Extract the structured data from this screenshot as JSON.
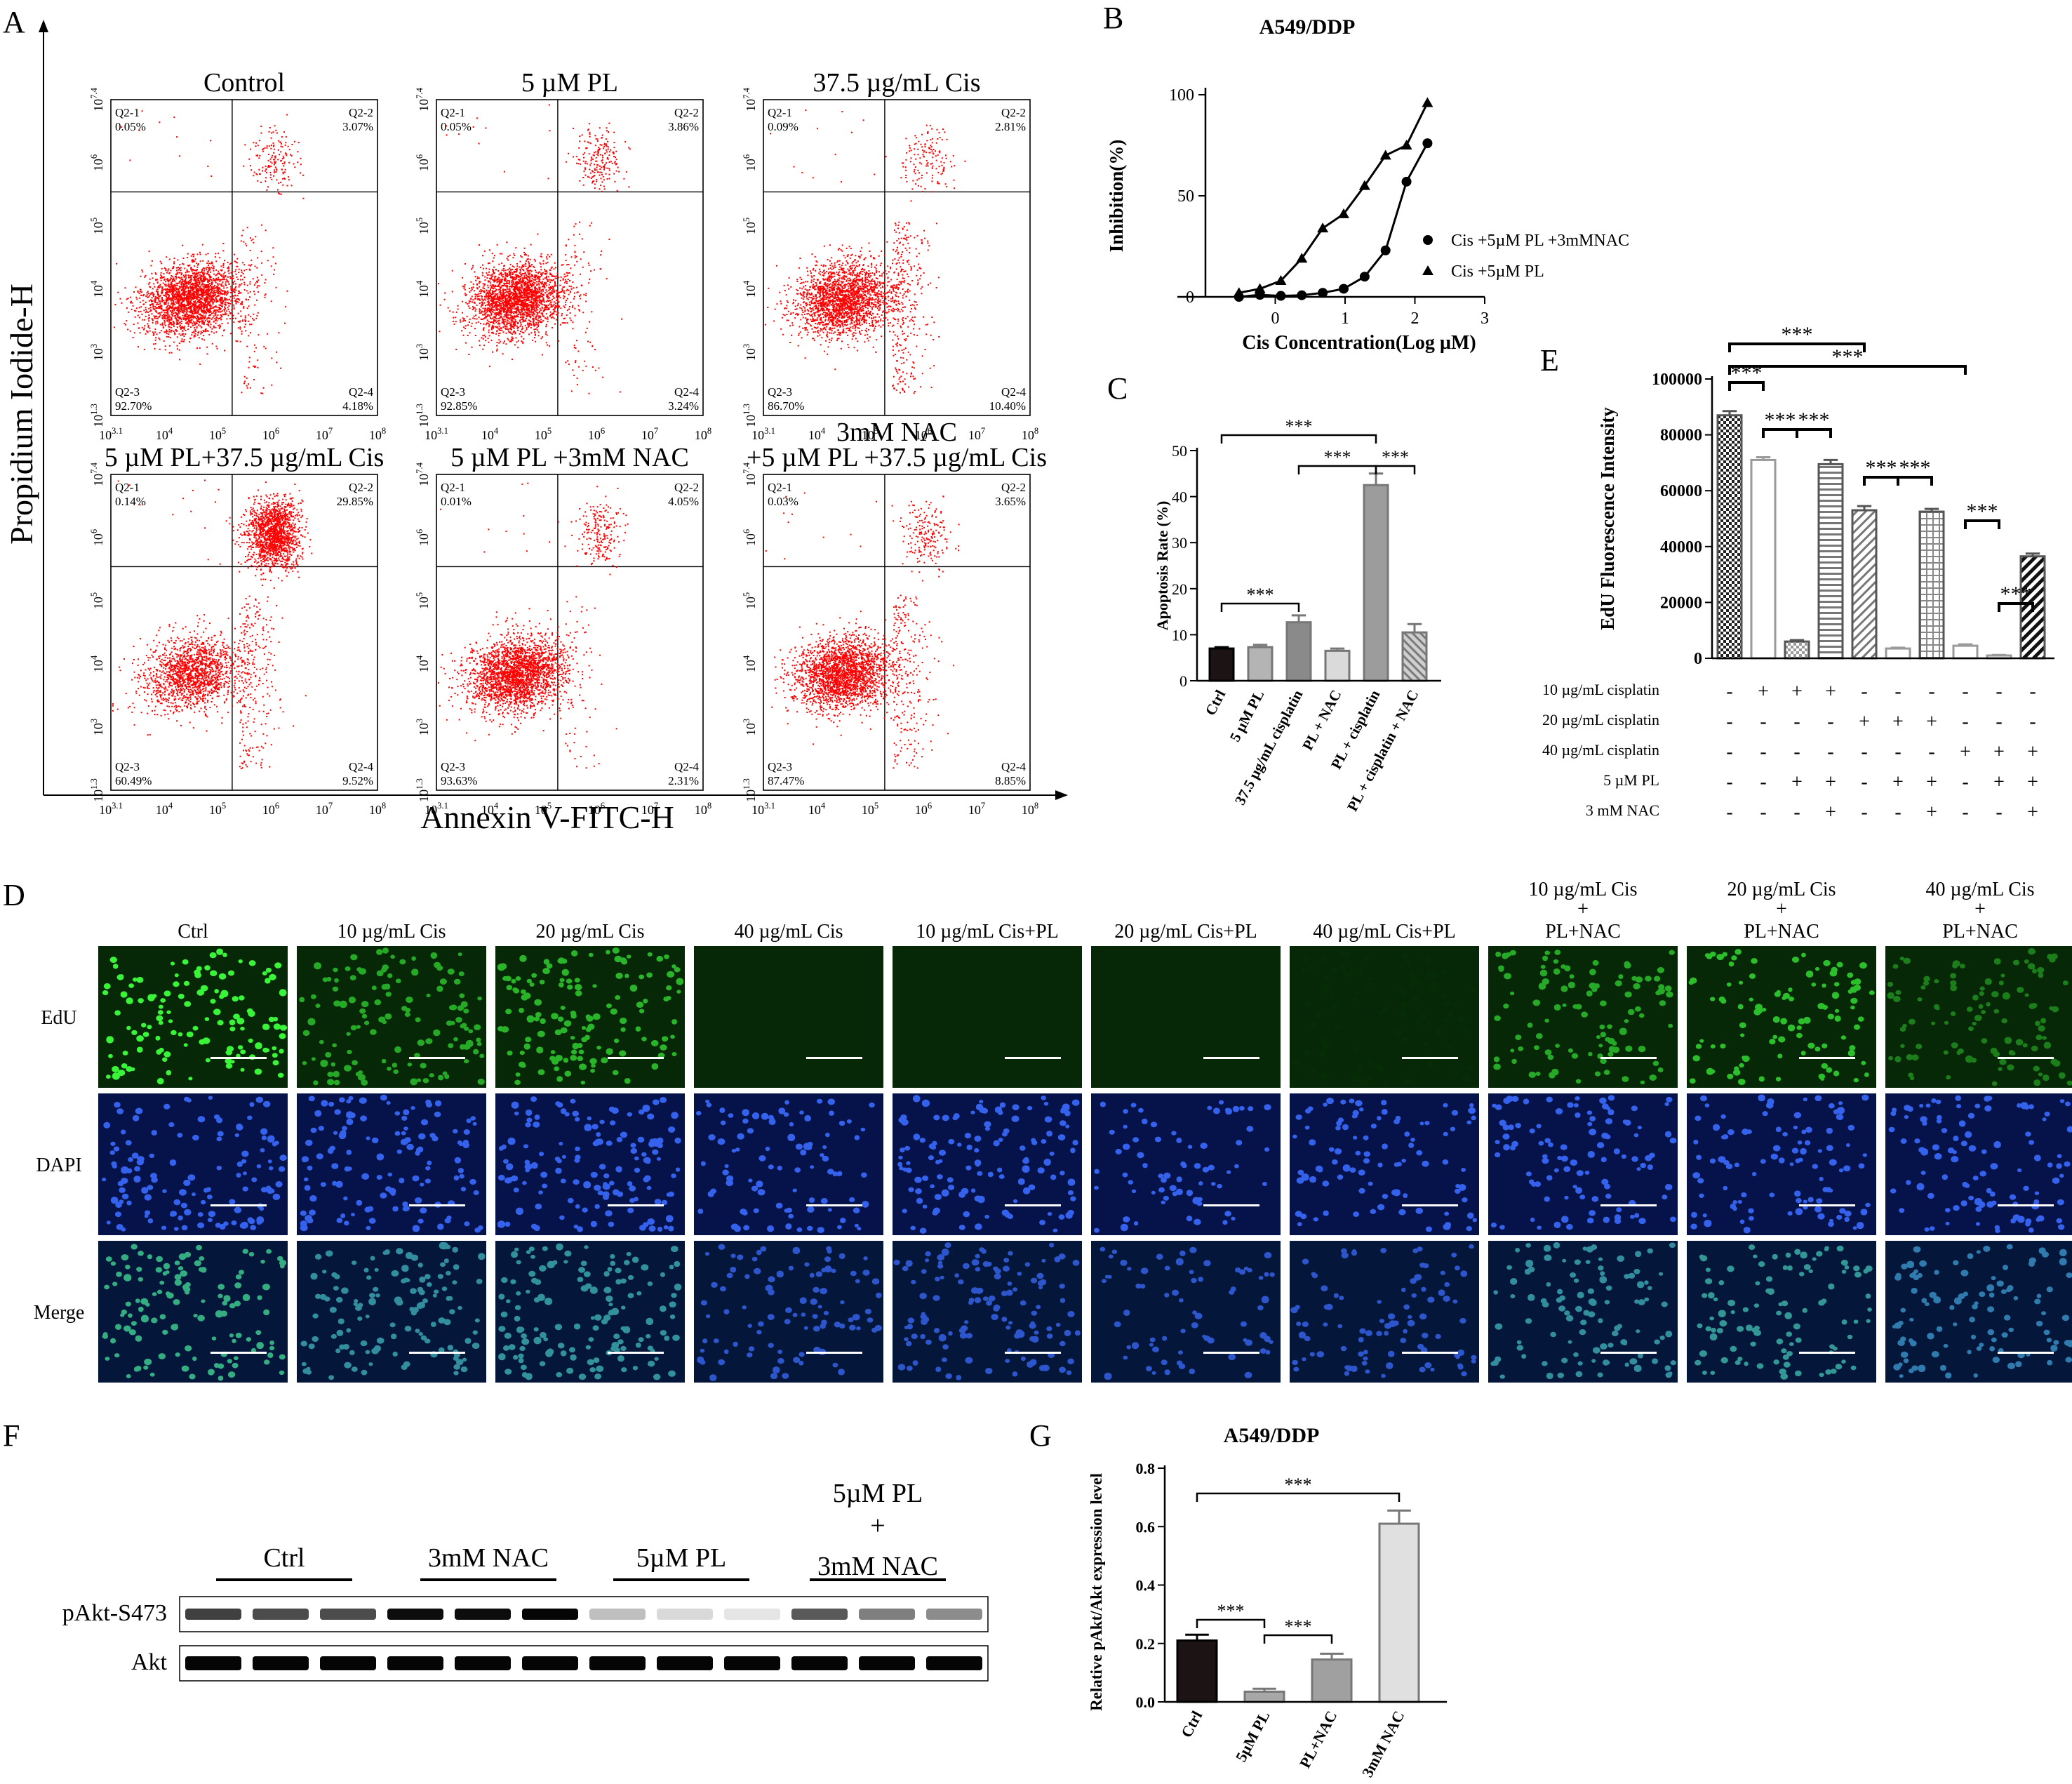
{
  "panels": {
    "A": {
      "letter": "A",
      "y_axis_label": "Propidium Iodide-H",
      "x_axis_label": "Annexin V-FITC-H",
      "x_ticks": [
        "10^3.1",
        "10^4",
        "10^5",
        "10^6",
        "10^7",
        "10^8"
      ],
      "y_ticks": [
        "10^1.3",
        "10^3",
        "10^4",
        "10^5",
        "10^6",
        "10^7.4"
      ],
      "plots": [
        {
          "title": "Control",
          "q21": "0.05%",
          "q22": "3.07%",
          "q23": "92.70%",
          "q24": "4.18%"
        },
        {
          "title": "5 µM PL",
          "q21": "0.05%",
          "q22": "3.86%",
          "q23": "92.85%",
          "q24": "3.24%"
        },
        {
          "title": "37.5 µg/mL Cis",
          "q21": "0.09%",
          "q22": "2.81%",
          "q23": "86.70%",
          "q24": "10.40%"
        },
        {
          "title": "5 µM PL+37.5 µg/mL Cis",
          "q21": "0.14%",
          "q22": "29.85%",
          "q23": "60.49%",
          "q24": "9.52%"
        },
        {
          "title": "5 µM PL +3mM NAC",
          "q21": "0.01%",
          "q22": "4.05%",
          "q23": "93.63%",
          "q24": "2.31%"
        },
        {
          "title_line1": "3mM NAC",
          "title": "+5 µM PL +37.5 µg/mL Cis",
          "q21": "0.03%",
          "q22": "3.65%",
          "q23": "87.47%",
          "q24": "8.85%"
        }
      ],
      "quadrant_labels": {
        "q21": "Q2-1",
        "q22": "Q2-2",
        "q23": "Q2-3",
        "q24": "Q2-4"
      },
      "dot_color": "#ff0000"
    },
    "B": {
      "letter": "B"
    },
    "C": {
      "letter": "C"
    },
    "D": {
      "letter": "D",
      "columns": [
        {
          "l1": "",
          "l2": "",
          "l3": "Ctrl"
        },
        {
          "l1": "",
          "l2": "",
          "l3": "10 µg/mL Cis"
        },
        {
          "l1": "",
          "l2": "",
          "l3": "20 µg/mL Cis"
        },
        {
          "l1": "",
          "l2": "",
          "l3": "40 µg/mL Cis"
        },
        {
          "l1": "",
          "l2": "",
          "l3": "10 µg/mL Cis+PL"
        },
        {
          "l1": "",
          "l2": "",
          "l3": "20 µg/mL Cis+PL"
        },
        {
          "l1": "",
          "l2": "",
          "l3": "40 µg/mL Cis+PL"
        },
        {
          "l1": "10 µg/mL Cis",
          "l2": "+",
          "l3": "PL+NAC"
        },
        {
          "l1": "20 µg/mL Cis",
          "l2": "+",
          "l3": "PL+NAC"
        },
        {
          "l1": "40 µg/mL Cis",
          "l2": "+",
          "l3": "PL+NAC"
        }
      ],
      "rows": [
        "EdU",
        "DAPI",
        "Merge"
      ],
      "edu_intensity": [
        0.95,
        0.6,
        0.65,
        0.0,
        0.0,
        0.0,
        0.02,
        0.6,
        0.7,
        0.4
      ],
      "dapi_density": [
        0.8,
        0.8,
        0.9,
        0.5,
        0.8,
        0.3,
        0.5,
        0.6,
        0.6,
        0.6
      ],
      "colors": {
        "edu_bg": "#062806",
        "edu_cell": "#3cff3c",
        "dapi_bg": "#06134a",
        "dapi_cell": "#3b6cff",
        "merge_bg": "#04163a",
        "scale_bar": "#ffffff"
      }
    },
    "E": {
      "letter": "E"
    },
    "F": {
      "letter": "F",
      "groups": [
        {
          "l1": "",
          "l2": "",
          "l3": "Ctrl"
        },
        {
          "l1": "",
          "l2": "",
          "l3": "3mM NAC"
        },
        {
          "l1": "",
          "l2": "",
          "l3": "5µM PL"
        },
        {
          "l1": "5µM PL",
          "l2": "+",
          "l3": "3mM NAC"
        }
      ],
      "rows": [
        "pAkt-S473",
        "Akt"
      ],
      "pakt_band_intensity": [
        0.75,
        0.7,
        0.7,
        0.95,
        0.95,
        0.98,
        0.25,
        0.15,
        0.1,
        0.65,
        0.5,
        0.45
      ],
      "akt_band_intensity": [
        0.98,
        0.98,
        0.98,
        0.98,
        0.98,
        0.98,
        0.98,
        0.98,
        0.98,
        0.98,
        0.98,
        0.98
      ]
    },
    "G": {
      "letter": "G"
    }
  },
  "chart_data": [
    {
      "panel": "B",
      "type": "scatter",
      "title": "A549/DDP",
      "xlabel": "Cis Concentration(Log µM)",
      "ylabel": "Inhibition(%)",
      "xlim": [
        -1,
        3
      ],
      "ylim": [
        0,
        100
      ],
      "x_ticks": [
        0,
        1,
        2,
        3
      ],
      "y_ticks": [
        0,
        50,
        100
      ],
      "legend_position": "right",
      "series": [
        {
          "name": "Cis +5µM PL +3mMNAC",
          "marker": "circle",
          "x": [
            -0.52,
            -0.22,
            0.08,
            0.38,
            0.68,
            0.98,
            1.28,
            1.58,
            1.88,
            2.18
          ],
          "y": [
            0,
            1,
            0.5,
            0.8,
            2,
            4,
            10,
            23,
            57,
            76
          ]
        },
        {
          "name": "Cis +5µM PL",
          "marker": "triangle",
          "x": [
            -0.52,
            -0.22,
            0.08,
            0.38,
            0.68,
            0.98,
            1.28,
            1.58,
            1.88,
            2.18
          ],
          "y": [
            2,
            4,
            8,
            19,
            34,
            41,
            55,
            70,
            75,
            96
          ]
        }
      ]
    },
    {
      "panel": "C",
      "type": "bar",
      "categories": [
        "Ctrl",
        "5 µM PL",
        "37.5 µg/mL cisplatin",
        "PL + NAC",
        "PL + cisplatin",
        "PL + cisplatin + NAC"
      ],
      "values": [
        7,
        7.3,
        12.7,
        6.5,
        42.5,
        10.5
      ],
      "errors": [
        0.3,
        0.5,
        1.5,
        0.5,
        2.5,
        1.8
      ],
      "colors": [
        "#1c1414",
        "#b4b4b4",
        "#8a8a8a",
        "#dadada",
        "#9c9c9c",
        "#b0b0b0"
      ],
      "hatched": [
        false,
        false,
        false,
        false,
        false,
        true
      ],
      "ylabel": "Apoptosis Rate (%)",
      "ylim": [
        0,
        50
      ],
      "y_ticks": [
        0,
        10,
        20,
        30,
        40,
        50
      ],
      "significance": [
        {
          "from": 0,
          "to": 4,
          "label": "***"
        },
        {
          "from": 2,
          "to": 4,
          "label": "***"
        },
        {
          "from": 4,
          "to": 5,
          "label": "***"
        },
        {
          "from": 0,
          "to": 2,
          "label": "***"
        }
      ]
    },
    {
      "panel": "E",
      "type": "bar",
      "ylabel": "EdU Fluorescence Intensity",
      "ylim": [
        0,
        100000
      ],
      "y_ticks": [
        0,
        20000,
        40000,
        60000,
        80000,
        100000
      ],
      "values": [
        87000,
        71000,
        6000,
        69500,
        53000,
        3500,
        52500,
        4500,
        1000,
        36500
      ],
      "errors": [
        1500,
        1000,
        500,
        1500,
        1500,
        300,
        1000,
        500,
        200,
        1000
      ],
      "styles": [
        "checker",
        "outline",
        "checker-light",
        "hstripe",
        "dstripe",
        "outline",
        "grid",
        "outline",
        "outline",
        "dstripe-bold"
      ],
      "treatment_rows": [
        {
          "label": "10 µg/mL cisplatin",
          "signs": [
            "-",
            "+",
            "+",
            "+",
            "-",
            "-",
            "-",
            "-",
            "-",
            "-"
          ]
        },
        {
          "label": "20 µg/mL cisplatin",
          "signs": [
            "-",
            "-",
            "-",
            "-",
            "+",
            "+",
            "+",
            "-",
            "-",
            "-"
          ]
        },
        {
          "label": "40 µg/mL cisplatin",
          "signs": [
            "-",
            "-",
            "-",
            "-",
            "-",
            "-",
            "-",
            "+",
            "+",
            "+"
          ]
        },
        {
          "label": "5 µM PL",
          "signs": [
            "-",
            "-",
            "+",
            "+",
            "-",
            "+",
            "+",
            "-",
            "+",
            "+"
          ]
        },
        {
          "label": "3 mM NAC",
          "signs": [
            "-",
            "-",
            "-",
            "+",
            "-",
            "-",
            "+",
            "-",
            "-",
            "+"
          ]
        }
      ],
      "significance": [
        {
          "from": 0,
          "to": 1,
          "label": "***"
        },
        {
          "from": 1,
          "to": 2,
          "label": "***"
        },
        {
          "from": 2,
          "to": 3,
          "label": "***"
        },
        {
          "from": 4,
          "to": 5,
          "label": "***"
        },
        {
          "from": 5,
          "to": 6,
          "label": "***"
        },
        {
          "from": 8,
          "to": 9,
          "label": "***"
        },
        {
          "from": 7,
          "to": 8,
          "label": "***"
        },
        {
          "from": 0,
          "to": 4,
          "label": "***"
        },
        {
          "from": 0,
          "to": 7,
          "label": "***"
        }
      ]
    },
    {
      "panel": "G",
      "type": "bar",
      "title": "A549/DDP",
      "categories": [
        "Ctrl",
        "5µM PL",
        "PL+NAC",
        "3mM NAC"
      ],
      "values": [
        0.21,
        0.035,
        0.145,
        0.61
      ],
      "errors": [
        0.02,
        0.01,
        0.02,
        0.045
      ],
      "colors": [
        "#1c1414",
        "#a8a8a8",
        "#a0a0a0",
        "#e0e0e0"
      ],
      "ylabel": "Relative pAkt/Akt expression level",
      "ylim": [
        0,
        0.8
      ],
      "y_ticks": [
        0.0,
        0.2,
        0.4,
        0.6,
        0.8
      ],
      "significance": [
        {
          "from": 0,
          "to": 1,
          "label": "***"
        },
        {
          "from": 1,
          "to": 2,
          "label": "***"
        },
        {
          "from": 0,
          "to": 3,
          "label": "***"
        }
      ]
    }
  ]
}
